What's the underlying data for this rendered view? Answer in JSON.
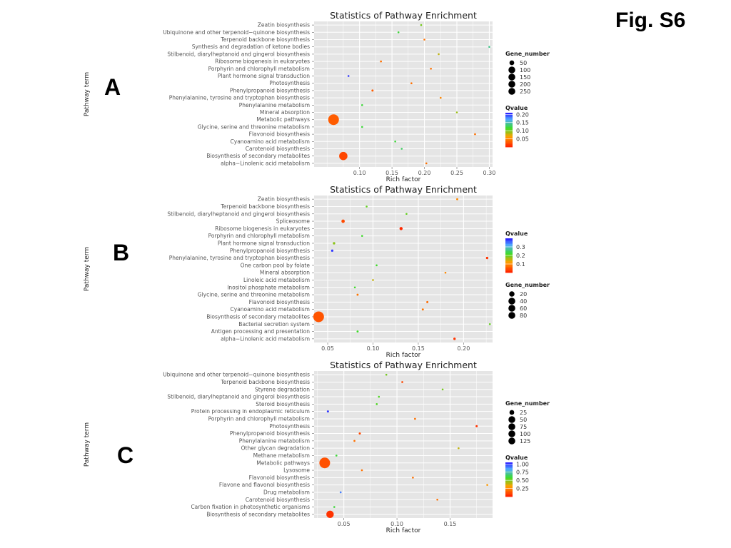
{
  "figure_label": "Fig. S6",
  "chart_data": [
    {
      "panel": "A",
      "type": "scatter",
      "title": "Statistics of Pathway Enrichment",
      "xlabel": "Rich factor",
      "ylabel": "Pathway term",
      "xlim": [
        0.03,
        0.305
      ],
      "xticks": [
        0.1,
        0.15,
        0.2,
        0.25,
        0.3
      ],
      "xtick_labels": [
        "0.10",
        "0.15",
        "0.20",
        "0.25",
        "0.30"
      ],
      "categories": [
        "Zeatin biosynthesis",
        "Ubiquinone and other terpenoid−quinone biosynthesis",
        "Terpenoid backbone biosynthesis",
        "Synthesis and degradation of ketone bodies",
        "Stilbenoid, diarylheptanoid and gingerol biosynthesis",
        "Ribosome biogenesis in eukaryotes",
        "Porphyrin and chlorophyll metabolism",
        "Plant hormone signal transduction",
        "Photosynthesis",
        "Phenylpropanoid biosynthesis",
        "Phenylalanine, tyrosine and tryptophan biosynthesis",
        "Phenylalanine metabolism",
        "Mineral absorption",
        "Metabolic pathways",
        "Glycine, serine and threonine metabolism",
        "Flavonoid biosynthesis",
        "Cyanoamino acid metabolism",
        "Carotenoid biosynthesis",
        "Biosynthesis of secondary metabolites",
        "alpha−Linolenic acid metabolism"
      ],
      "rich_factor": [
        0.195,
        0.16,
        0.2,
        0.3,
        0.222,
        0.133,
        0.21,
        0.083,
        0.18,
        0.12,
        0.225,
        0.104,
        0.25,
        0.06,
        0.104,
        0.278,
        0.155,
        0.165,
        0.075,
        0.203
      ],
      "gene_number": [
        3,
        2,
        3,
        2,
        3,
        8,
        5,
        6,
        5,
        10,
        4,
        3,
        2,
        250,
        3,
        5,
        3,
        3,
        150,
        4
      ],
      "qvalue": [
        0.1,
        0.12,
        0.04,
        0.14,
        0.08,
        0.04,
        0.04,
        0.2,
        0.04,
        0.03,
        0.05,
        0.12,
        0.09,
        0.03,
        0.12,
        0.04,
        0.12,
        0.13,
        0.02,
        0.04
      ],
      "legend_size": {
        "title": "Gene_number",
        "values": [
          50,
          100,
          150,
          200,
          250
        ],
        "labels": [
          "50",
          "100",
          "150",
          "200",
          "250"
        ]
      },
      "legend_color": {
        "title": "Qvalue",
        "range": [
          0.0,
          0.21
        ],
        "ticks": [
          0.2,
          0.15,
          0.1,
          0.05
        ],
        "tick_labels": [
          "0.20",
          "0.15",
          "0.10",
          "0.05"
        ]
      },
      "size_range": [
        0,
        250
      ],
      "legend_order": "size-first"
    },
    {
      "panel": "B",
      "type": "scatter",
      "title": "Statistics of Pathway Enrichment",
      "xlabel": "Rich factor",
      "ylabel": "Pathway term",
      "xlim": [
        0.035,
        0.232
      ],
      "xticks": [
        0.05,
        0.1,
        0.15,
        0.2
      ],
      "xtick_labels": [
        "0.05",
        "0.10",
        "0.15",
        "0.20"
      ],
      "categories": [
        "Zeatin biosynthesis",
        "Terpenoid backbone biosynthesis",
        "Stilbenoid, diarylheptanoid and gingerol biosynthesis",
        "Spliceosome",
        "Ribosome biogenesis in eukaryotes",
        "Porphyrin and chlorophyll metabolism",
        "Plant hormone signal transduction",
        "Phenylpropanoid biosynthesis",
        "Phenylalanine, tyrosine and tryptophan biosynthesis",
        "One carbon pool by folate",
        "Mineral absorption",
        "Linoleic acid metabolism",
        "Inositol phosphate metabolism",
        "Glycine, serine and threonine metabolism",
        "Flavonoid biosynthesis",
        "Cyanoamino acid metabolism",
        "Biosynthesis of secondary metabolites",
        "Bacterial secretion system",
        "Antigen processing and presentation",
        "alpha−Linolenic acid metabolism"
      ],
      "rich_factor": [
        0.193,
        0.093,
        0.137,
        0.067,
        0.131,
        0.088,
        0.057,
        0.055,
        0.226,
        0.104,
        0.18,
        0.1,
        0.08,
        0.083,
        0.16,
        0.155,
        0.04,
        0.229,
        0.083,
        0.19
      ],
      "gene_number": [
        3,
        2,
        2,
        8,
        7,
        2,
        4,
        4,
        4,
        2,
        2,
        2,
        2,
        3,
        3,
        3,
        80,
        2,
        3,
        4
      ],
      "qvalue": [
        0.1,
        0.2,
        0.2,
        0.04,
        0.01,
        0.22,
        0.18,
        0.38,
        0.02,
        0.22,
        0.1,
        0.15,
        0.22,
        0.08,
        0.07,
        0.08,
        0.05,
        0.2,
        0.22,
        0.02
      ],
      "legend_size": {
        "title": "Gene_number",
        "values": [
          20,
          40,
          60,
          80
        ],
        "labels": [
          "20",
          "40",
          "60",
          "80"
        ]
      },
      "legend_color": {
        "title": "Qvalue",
        "range": [
          0.0,
          0.4
        ],
        "ticks": [
          0.3,
          0.2,
          0.1
        ],
        "tick_labels": [
          "0.3",
          "0.2",
          "0.1"
        ]
      },
      "size_range": [
        0,
        80
      ],
      "legend_order": "color-first"
    },
    {
      "panel": "C",
      "type": "scatter",
      "title": "Statistics of Pathway Enrichment",
      "xlabel": "Rich factor",
      "ylabel": "Pathway term",
      "xlim": [
        0.022,
        0.19
      ],
      "xticks": [
        0.05,
        0.1,
        0.15
      ],
      "xtick_labels": [
        "0.05",
        "0.10",
        "0.15"
      ],
      "categories": [
        "Ubiquinone and other terpenoid−quinone biosynthesis",
        "Terpenoid backbone biosynthesis",
        "Styrene degradation",
        "Stilbenoid, diarylheptanoid and gingerol biosynthesis",
        "Steroid biosynthesis",
        "Protein processing in endoplasmic reticulum",
        "Porphyrin and chlorophyll metabolism",
        "Photosynthesis",
        "Phenylpropanoid biosynthesis",
        "Phenylalanine metabolism",
        "Other glycan degradation",
        "Methane metabolism",
        "Metabolic pathways",
        "Lysosome",
        "Flavonoid biosynthesis",
        "Flavone and flavonol biosynthesis",
        "Drug metabolism",
        "Carotenoid biosynthesis",
        "Carbon fixation in photosynthetic organisms",
        "Biosynthesis of secondary metabolites"
      ],
      "rich_factor": [
        0.09,
        0.105,
        0.143,
        0.083,
        0.081,
        0.035,
        0.117,
        0.175,
        0.065,
        0.06,
        0.158,
        0.043,
        0.032,
        0.067,
        0.115,
        0.185,
        0.047,
        0.138,
        0.041,
        0.037
      ],
      "gene_number": [
        2,
        3,
        2,
        2,
        2,
        5,
        4,
        5,
        5,
        4,
        2,
        4,
        125,
        4,
        3,
        2,
        3,
        3,
        2,
        60
      ],
      "qvalue": [
        0.5,
        0.1,
        0.5,
        0.55,
        0.55,
        1.0,
        0.2,
        0.05,
        0.1,
        0.2,
        0.4,
        0.6,
        0.12,
        0.2,
        0.2,
        0.3,
        0.9,
        0.2,
        0.6,
        0.05
      ],
      "legend_size": {
        "title": "Gene_number",
        "values": [
          25,
          50,
          75,
          100,
          125
        ],
        "labels": [
          "25",
          "50",
          "75",
          "100",
          "125"
        ]
      },
      "legend_color": {
        "title": "Qvalue",
        "range": [
          0.0,
          1.05
        ],
        "ticks": [
          1.0,
          0.75,
          0.5,
          0.25
        ],
        "tick_labels": [
          "1.00",
          "0.75",
          "0.50",
          "0.25"
        ]
      },
      "size_range": [
        0,
        125
      ],
      "legend_order": "size-first"
    }
  ]
}
